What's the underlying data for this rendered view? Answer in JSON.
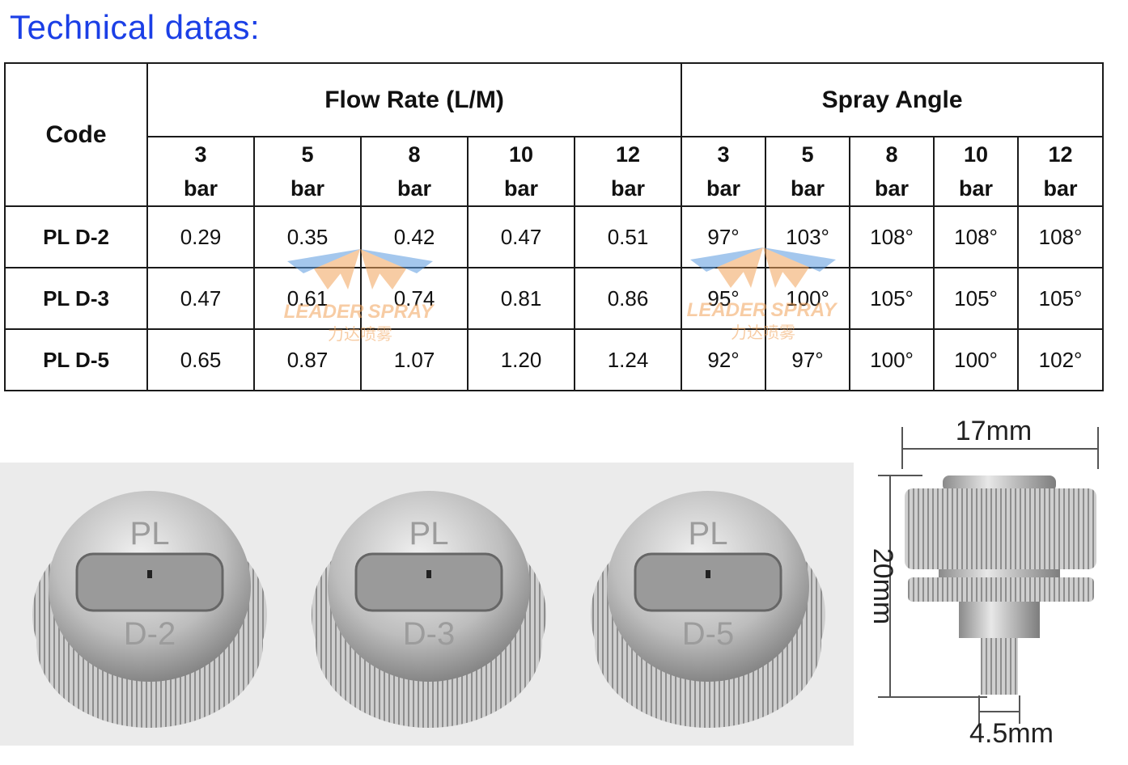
{
  "header": {
    "title": "Technical datas:"
  },
  "table": {
    "code_header": "Code",
    "groups": [
      "Flow Rate (L/M)",
      "Spray Angle"
    ],
    "subheaders": [
      {
        "value": "3",
        "unit": "bar"
      },
      {
        "value": "5",
        "unit": "bar"
      },
      {
        "value": "8",
        "unit": "bar"
      },
      {
        "value": "10",
        "unit": "bar"
      },
      {
        "value": "12",
        "unit": "bar"
      },
      {
        "value": "3",
        "unit": "bar"
      },
      {
        "value": "5",
        "unit": "bar"
      },
      {
        "value": "8",
        "unit": "bar"
      },
      {
        "value": "10",
        "unit": "bar"
      },
      {
        "value": "12",
        "unit": "bar"
      }
    ],
    "rows": [
      [
        "PL D-2",
        "0.29",
        "0.35",
        "0.42",
        "0.47",
        "0.51",
        "97°",
        "103°",
        "108°",
        "108°",
        "108°"
      ],
      [
        "PL D-3",
        "0.47",
        "0.61",
        "0.74",
        "0.81",
        "0.86",
        "95°",
        "100°",
        "105°",
        "105°",
        "105°"
      ],
      [
        "PL D-5",
        "0.65",
        "0.87",
        "1.07",
        "1.20",
        "1.24",
        "92°",
        "97°",
        "100°",
        "100°",
        "102°"
      ]
    ]
  },
  "watermark": {
    "brand": [
      "LEADER",
      "SPRAY"
    ],
    "chinese": "力达喷雾"
  },
  "photos": {
    "nozzles": [
      {
        "top": "PL",
        "bottom": "D-2"
      },
      {
        "top": "PL",
        "bottom": "D-3"
      },
      {
        "top": "PL",
        "bottom": "D-5"
      }
    ],
    "dimensions": {
      "width": "17mm",
      "height": "20mm",
      "thread": "4.5mm"
    }
  }
}
